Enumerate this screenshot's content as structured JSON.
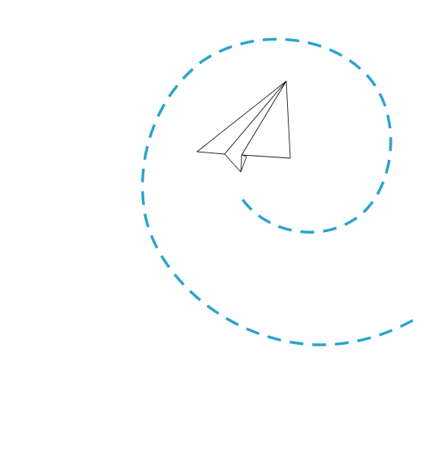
{
  "illustration": {
    "subject": "paper-airplane",
    "trail_style": "dashed-spiral",
    "colors": {
      "background": "#ffffff",
      "trail": "#2aa3d1",
      "airplane_outline": "#222222",
      "airplane_fill": "#ffffff"
    }
  }
}
